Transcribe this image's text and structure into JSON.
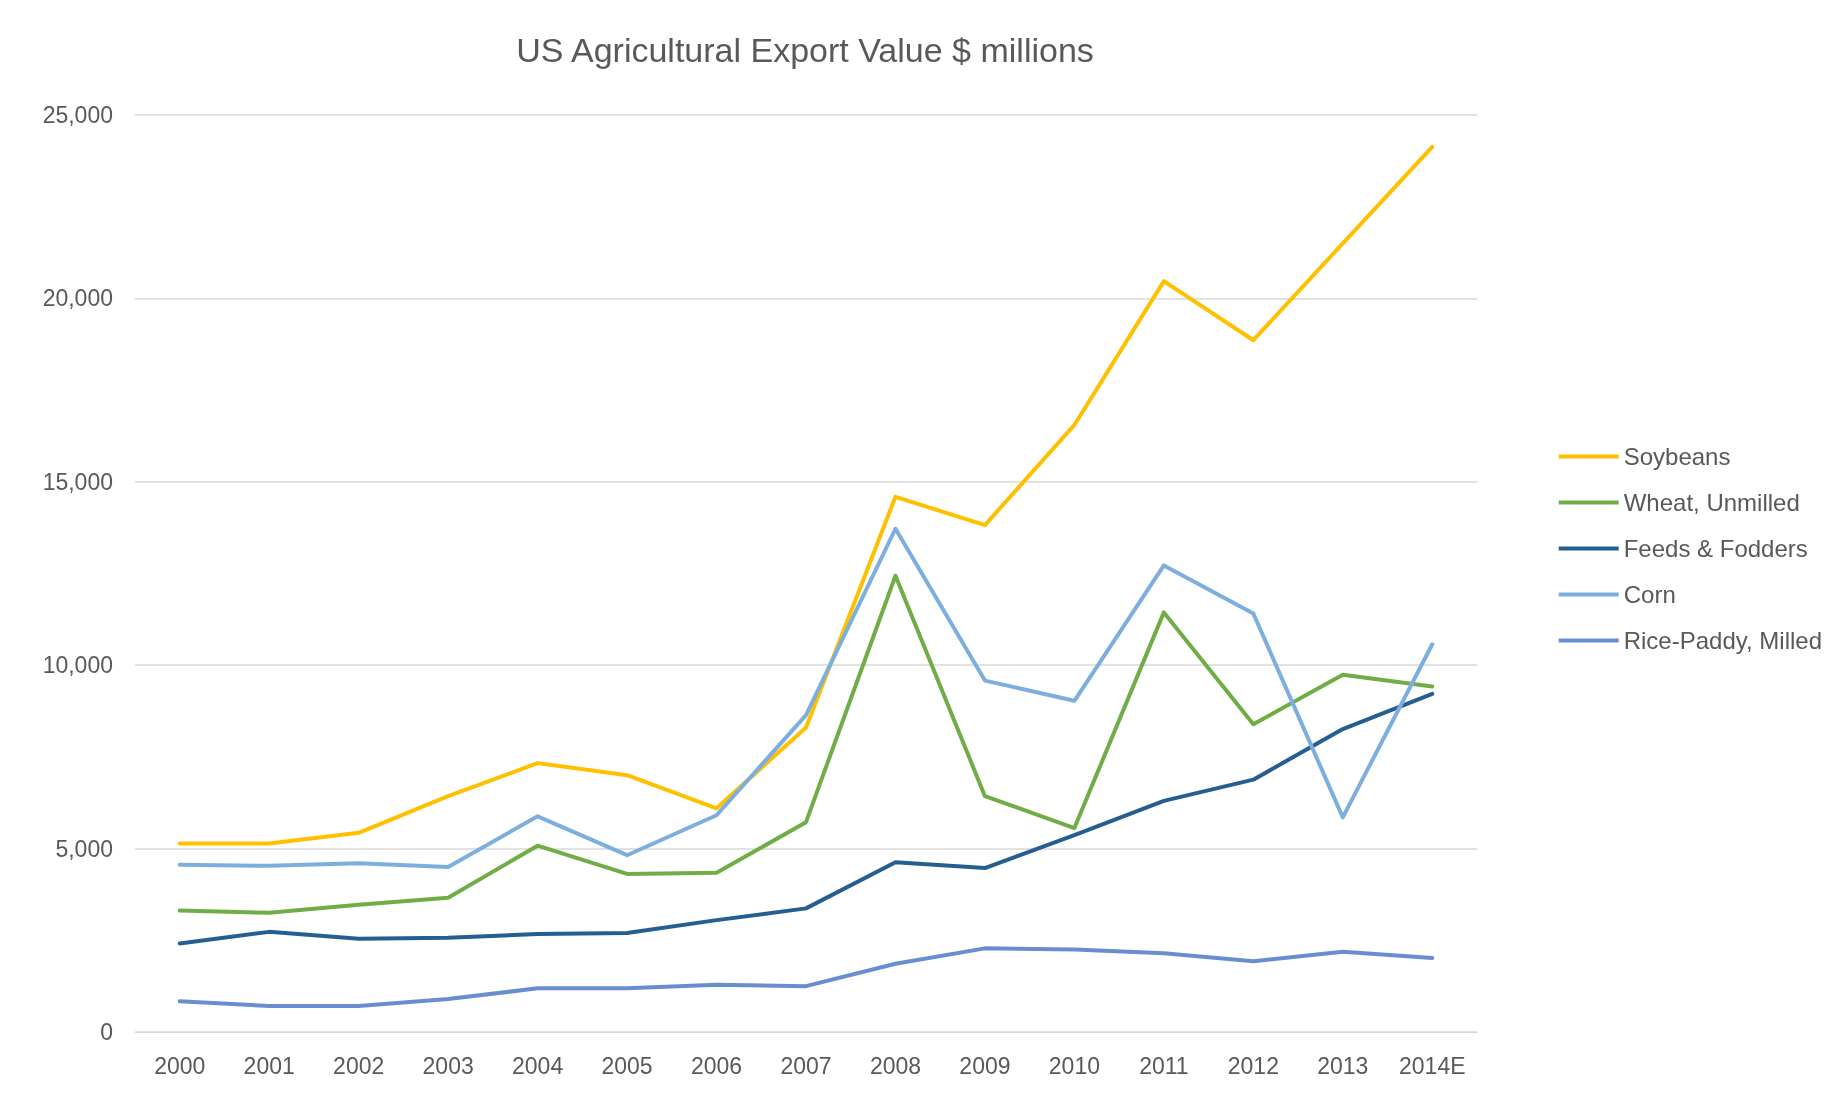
{
  "chart_data": {
    "type": "line",
    "title": "US Agricultural Export Value $ millions",
    "categories": [
      "2000",
      "2001",
      "2002",
      "2003",
      "2004",
      "2005",
      "2006",
      "2007",
      "2008",
      "2009",
      "2010",
      "2011",
      "2012",
      "2013",
      "2014E"
    ],
    "series": [
      {
        "name": "Soybeans",
        "color": "#ffc000",
        "values": [
          5140,
          5140,
          5430,
          6430,
          7330,
          7000,
          6100,
          8300,
          14590,
          13820,
          16550,
          20470,
          18860,
          21500,
          24130
        ]
      },
      {
        "name": "Wheat, Unmilled",
        "color": "#70ad47",
        "values": [
          3310,
          3250,
          3470,
          3660,
          5080,
          4310,
          4340,
          5720,
          12440,
          6430,
          5560,
          11440,
          8390,
          9740,
          9420
        ]
      },
      {
        "name": "Feeds & Fodders",
        "color": "#255e91",
        "values": [
          2410,
          2730,
          2540,
          2570,
          2670,
          2700,
          3050,
          3370,
          4630,
          4470,
          5370,
          6300,
          6880,
          8260,
          9220
        ]
      },
      {
        "name": "Corn",
        "color": "#7cafdd",
        "values": [
          4560,
          4530,
          4600,
          4500,
          5880,
          4820,
          5910,
          8640,
          13720,
          9580,
          9030,
          12720,
          11410,
          5850,
          10570
        ]
      },
      {
        "name": "Rice-Paddy, Milled",
        "color": "#698ed0",
        "values": [
          840,
          710,
          710,
          900,
          1190,
          1190,
          1290,
          1250,
          1860,
          2280,
          2250,
          2150,
          1930,
          2190,
          2020
        ]
      }
    ],
    "ylim": [
      0,
      25000
    ],
    "yticks": [
      0,
      {
        "value": 5000,
        "label": "5,000"
      },
      {
        "value": 10000,
        "label": "10,000"
      },
      {
        "value": 15000,
        "label": "15,000"
      },
      {
        "value": 20000,
        "label": "20,000"
      },
      {
        "value": 25000,
        "label": "25,000"
      }
    ],
    "grid": "y",
    "legend": "right",
    "marker": "none",
    "line_style": "solid"
  }
}
